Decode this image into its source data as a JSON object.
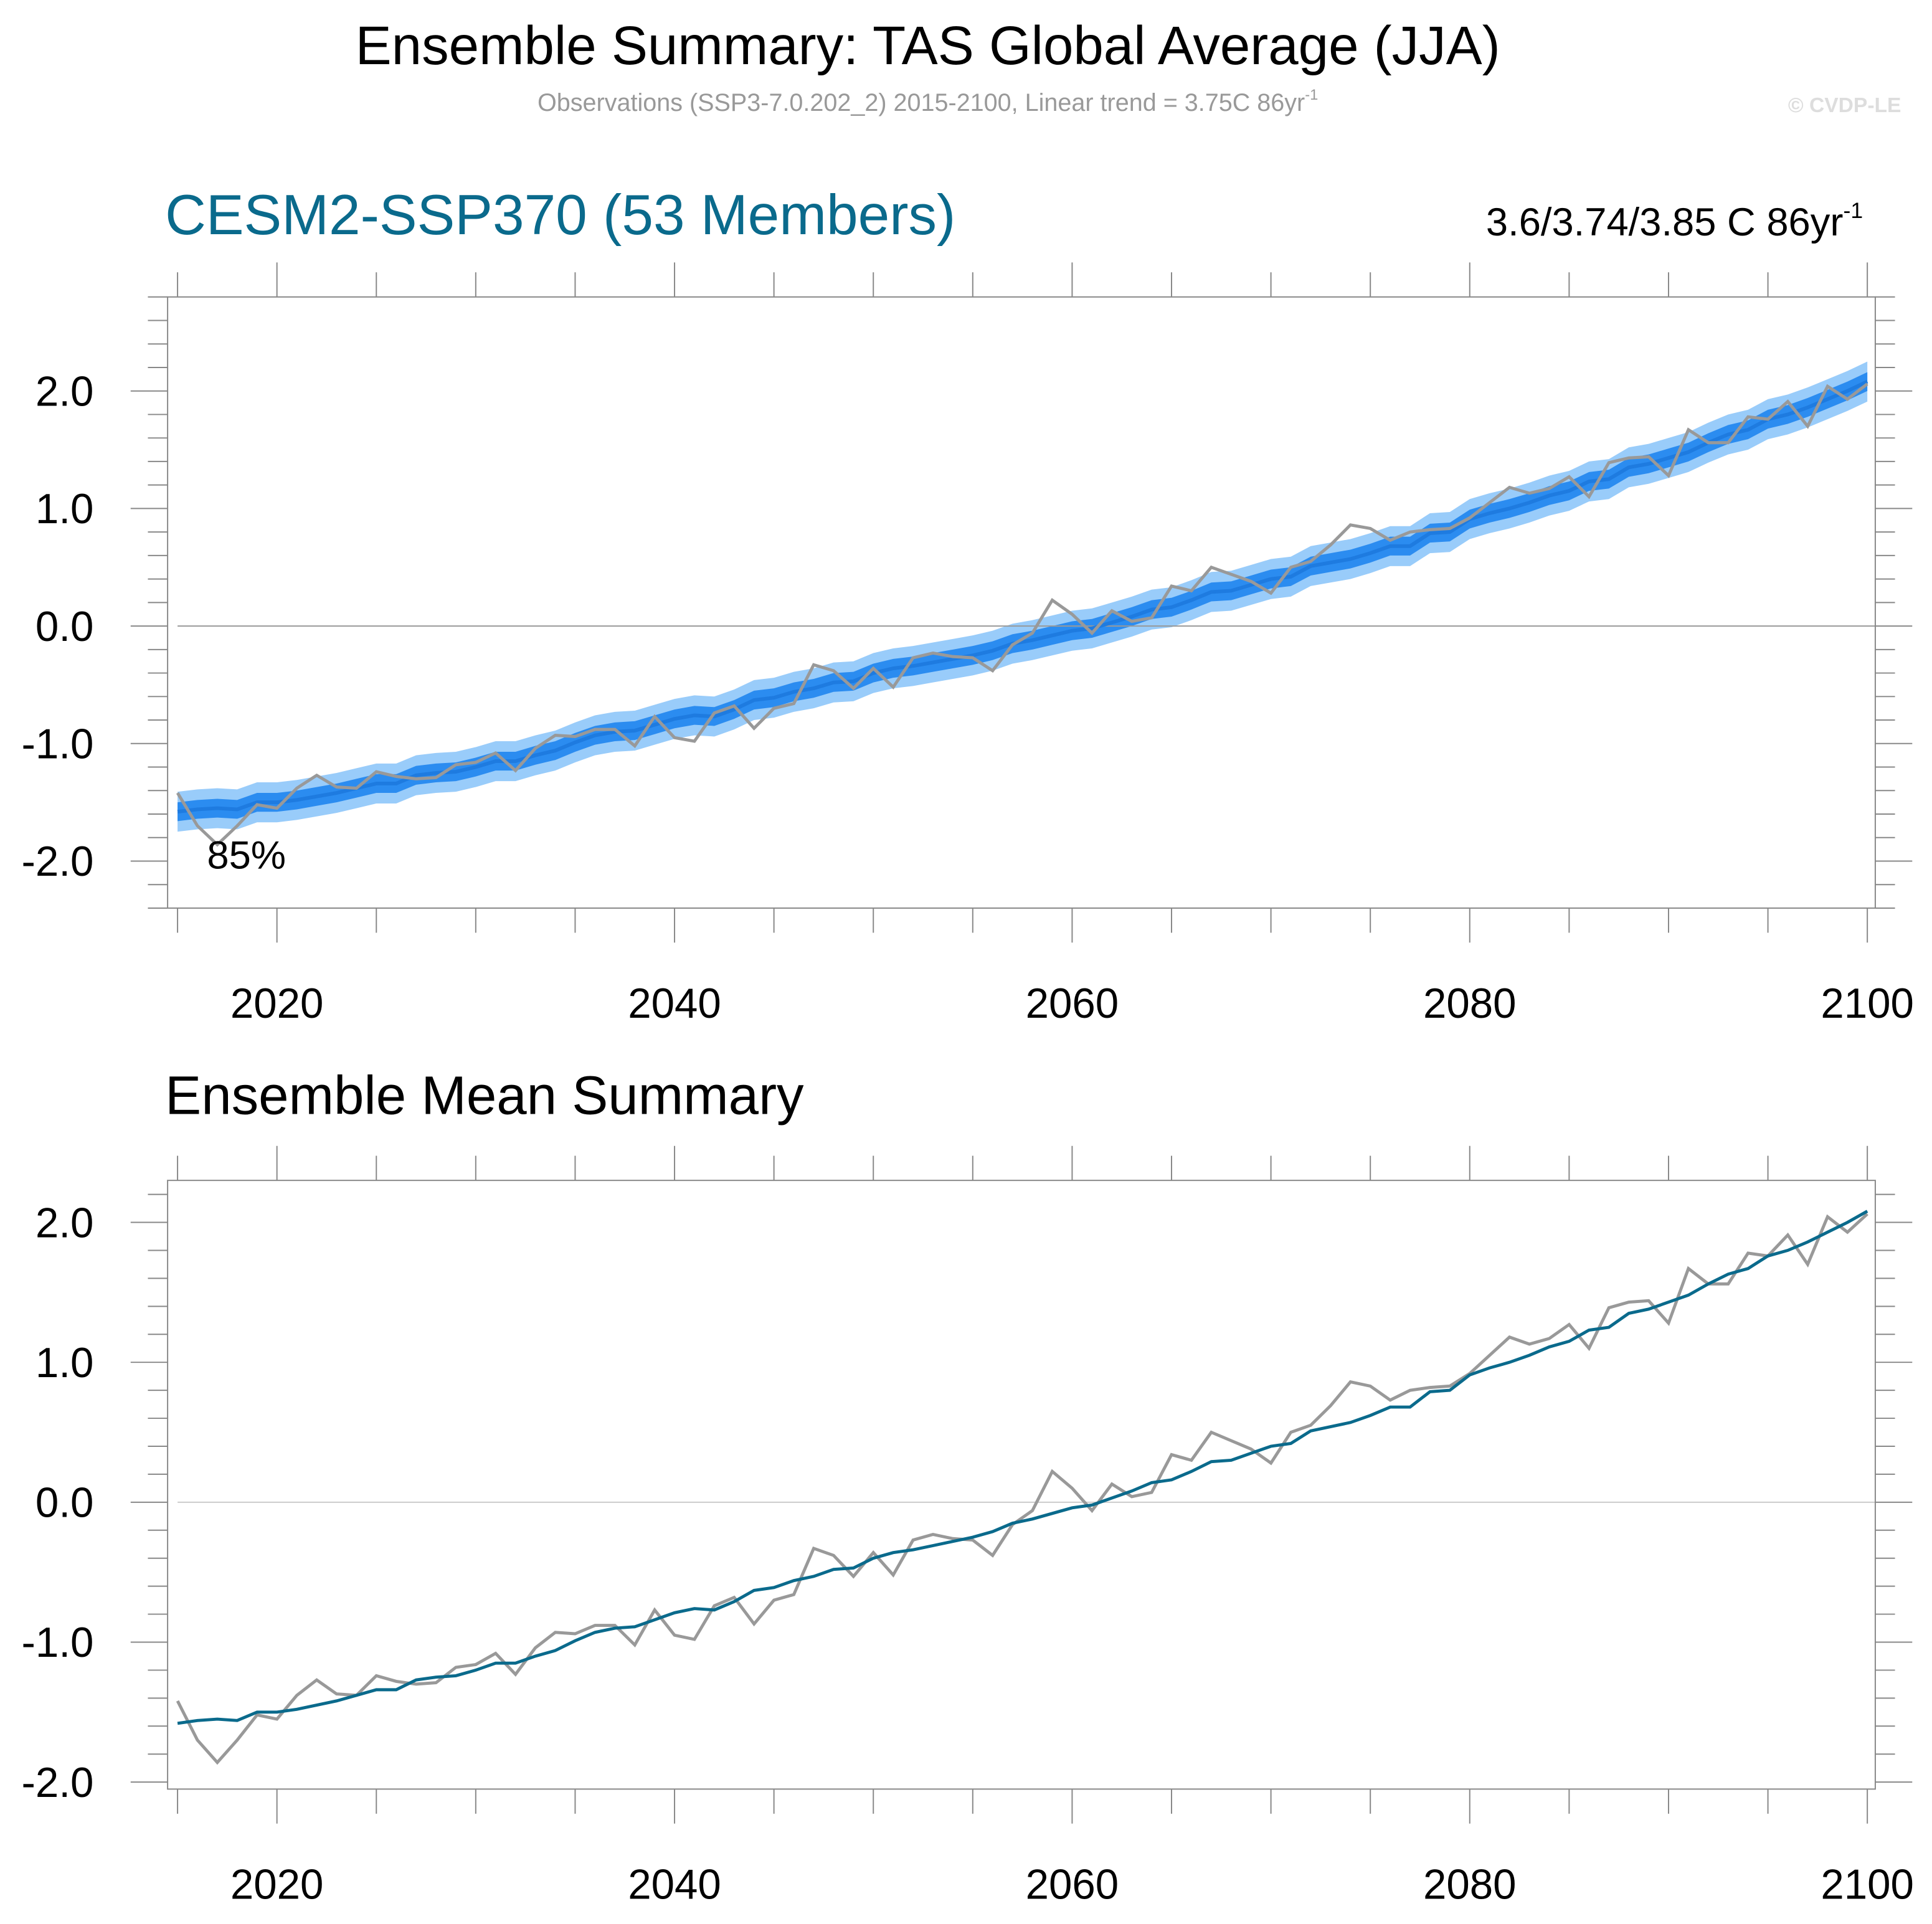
{
  "header": {
    "title": "Ensemble Summary: TAS Global Average (JJA)",
    "subtitle": "Observations (SSP3-7.0.202_2) 2015-2100, Linear trend = 3.75C 86yr",
    "subtitle_sup": "-1",
    "watermark": "© CVDP-LE"
  },
  "colors": {
    "obs": "#999999",
    "ensemble_mean_top": "#1e7be0",
    "inner_band": "#2b8cf0",
    "outer_band": "#99ccfa",
    "ensemble_mean_bottom": "#0a6a8c",
    "panel_title": "#0a6a8c"
  },
  "chart_data": [
    {
      "type": "area",
      "title": "CESM2-SSP370 (53 Members)",
      "trend_label": "3.6/3.74/3.85 C 86yr",
      "trend_sup": "-1",
      "annotation": "85%",
      "xlim": [
        2014.5,
        2100.4
      ],
      "ylim": [
        -2.4,
        2.8
      ],
      "xticks": [
        "2020",
        "2040",
        "2060",
        "2080",
        "2100"
      ],
      "yticks": [
        "2.0",
        "1.0",
        "0.0",
        "-1.0",
        "-2.0"
      ],
      "inner_band_halfwidth": 0.08,
      "outer_band_halfwidth": 0.17,
      "series_ref": "shared"
    },
    {
      "type": "line",
      "title": "Ensemble Mean Summary",
      "xlim": [
        2014.5,
        2100.4
      ],
      "ylim": [
        -2.05,
        2.3
      ],
      "xticks": [
        "2020",
        "2040",
        "2060",
        "2080",
        "2100"
      ],
      "yticks": [
        "2.0",
        "1.0",
        "0.0",
        "-1.0",
        "-2.0"
      ],
      "series_ref": "shared"
    }
  ],
  "shared_series": {
    "x_start": 2015,
    "x_end": 2100,
    "observations": [
      -1.42,
      -1.7,
      -1.86,
      -1.7,
      -1.52,
      -1.55,
      -1.38,
      -1.27,
      -1.37,
      -1.38,
      -1.24,
      -1.28,
      -1.3,
      -1.29,
      -1.18,
      -1.16,
      -1.08,
      -1.23,
      -1.04,
      -0.93,
      -0.94,
      -0.88,
      -0.88,
      -1.02,
      -0.77,
      -0.95,
      -0.98,
      -0.74,
      -0.68,
      -0.87,
      -0.7,
      -0.66,
      -0.33,
      -0.38,
      -0.53,
      -0.36,
      -0.52,
      -0.27,
      -0.23,
      -0.26,
      -0.27,
      -0.38,
      -0.16,
      -0.06,
      0.22,
      0.1,
      -0.06,
      0.13,
      0.04,
      0.07,
      0.34,
      0.3,
      0.5,
      0.44,
      0.38,
      0.28,
      0.5,
      0.55,
      0.69,
      0.86,
      0.83,
      0.73,
      0.8,
      0.82,
      0.83,
      0.92,
      1.05,
      1.18,
      1.13,
      1.17,
      1.27,
      1.1,
      1.39,
      1.43,
      1.44,
      1.28,
      1.67,
      1.56,
      1.56,
      1.78,
      1.76,
      1.91,
      1.7,
      2.04,
      1.93,
      2.06
    ],
    "ensemble_mean": [
      -1.58,
      -1.56,
      -1.55,
      -1.56,
      -1.5,
      -1.5,
      -1.48,
      -1.45,
      -1.42,
      -1.38,
      -1.34,
      -1.34,
      -1.27,
      -1.25,
      -1.24,
      -1.2,
      -1.15,
      -1.15,
      -1.1,
      -1.06,
      -0.99,
      -0.93,
      -0.9,
      -0.89,
      -0.84,
      -0.79,
      -0.76,
      -0.77,
      -0.71,
      -0.63,
      -0.61,
      -0.56,
      -0.53,
      -0.48,
      -0.47,
      -0.4,
      -0.36,
      -0.34,
      -0.31,
      -0.28,
      -0.25,
      -0.21,
      -0.15,
      -0.12,
      -0.08,
      -0.04,
      -0.02,
      0.03,
      0.08,
      0.14,
      0.16,
      0.22,
      0.29,
      0.3,
      0.35,
      0.4,
      0.42,
      0.51,
      0.54,
      0.57,
      0.62,
      0.68,
      0.68,
      0.79,
      0.8,
      0.91,
      0.96,
      1.0,
      1.05,
      1.11,
      1.15,
      1.23,
      1.25,
      1.35,
      1.38,
      1.43,
      1.48,
      1.56,
      1.63,
      1.67,
      1.76,
      1.8,
      1.86,
      1.93,
      2.0,
      2.08
    ]
  }
}
